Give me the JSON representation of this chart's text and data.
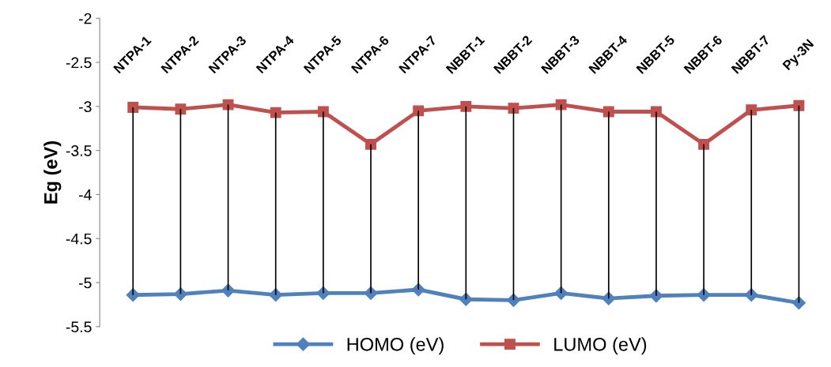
{
  "chart_data": {
    "type": "line",
    "ylabel": "Eg (eV)",
    "categories": [
      "NTPA-1",
      "NTPA-2",
      "NTPA-3",
      "NTPA-4",
      "NTPA-5",
      "NTPA-6",
      "NTPA-7",
      "NBBT-1",
      "NBBT-2",
      "NBBT-3",
      "NBBT-4",
      "NBBT-5",
      "NBBT-6",
      "NBBT-7",
      "Py-3N"
    ],
    "series": [
      {
        "name": "HOMO (eV)",
        "color": "#4f81bd",
        "marker": "diamond",
        "values": [
          -5.14,
          -5.13,
          -5.09,
          -5.14,
          -5.12,
          -5.12,
          -5.08,
          -5.19,
          -5.2,
          -5.12,
          -5.18,
          -5.15,
          -5.14,
          -5.14,
          -5.23
        ]
      },
      {
        "name": "LUMO (eV)",
        "color": "#c0504d",
        "marker": "square",
        "values": [
          -3.01,
          -3.03,
          -2.98,
          -3.07,
          -3.06,
          -3.43,
          -3.05,
          -3.0,
          -3.02,
          -2.98,
          -3.06,
          -3.06,
          -3.43,
          -3.04,
          -2.99
        ],
        "errors": [
          [
            -5.14,
            -3.01
          ],
          [
            -5.13,
            -3.03
          ],
          [
            -5.09,
            -2.98
          ],
          [
            -5.14,
            -3.07
          ],
          [
            -5.12,
            -3.06
          ],
          [
            -5.12,
            -3.43
          ],
          [
            -5.08,
            -3.05
          ],
          [
            -5.19,
            -3.0
          ],
          [
            -5.2,
            -3.02
          ],
          [
            -5.12,
            -2.98
          ],
          [
            -5.18,
            -3.06
          ],
          [
            -5.15,
            -3.06
          ],
          [
            -5.14,
            -3.43
          ],
          [
            -5.14,
            -3.04
          ],
          [
            -5.23,
            -2.99
          ]
        ]
      }
    ],
    "ylim": [
      -5.5,
      -2
    ],
    "yticks": [
      -2,
      -2.5,
      -3,
      -3.5,
      -4,
      -4.5,
      -5,
      -5.5
    ],
    "grid": false,
    "legend": "bottom",
    "line_style": "solid"
  }
}
